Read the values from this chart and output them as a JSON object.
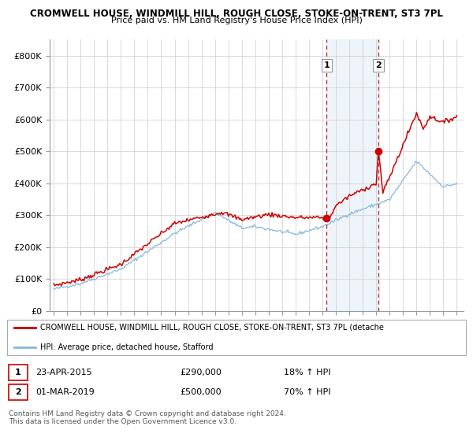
{
  "title1": "CROMWELL HOUSE, WINDMILL HILL, ROUGH CLOSE, STOKE-ON-TRENT, ST3 7PL",
  "title2": "Price paid vs. HM Land Registry's House Price Index (HPI)",
  "ylim": [
    0,
    850000
  ],
  "xlim_start": 1994.7,
  "xlim_end": 2025.5,
  "yticks": [
    0,
    100000,
    200000,
    300000,
    400000,
    500000,
    600000,
    700000,
    800000
  ],
  "ytick_labels": [
    "£0",
    "£100K",
    "£200K",
    "£300K",
    "£400K",
    "£500K",
    "£600K",
    "£700K",
    "£800K"
  ],
  "xticks": [
    1995,
    1996,
    1997,
    1998,
    1999,
    2000,
    2001,
    2002,
    2003,
    2004,
    2005,
    2006,
    2007,
    2008,
    2009,
    2010,
    2011,
    2012,
    2013,
    2014,
    2015,
    2016,
    2017,
    2018,
    2019,
    2020,
    2021,
    2022,
    2023,
    2024,
    2025
  ],
  "hpi_color": "#85b8db",
  "price_color": "#cc0000",
  "marker_color": "#cc0000",
  "vline_color": "#cc0000",
  "shade_color": "#cde4f5",
  "point1_x": 2015.31,
  "point1_y": 290000,
  "point2_x": 2019.17,
  "point2_y": 500000,
  "legend_label1": "CROMWELL HOUSE, WINDMILL HILL, ROUGH CLOSE, STOKE-ON-TRENT, ST3 7PL (detache",
  "legend_label2": "HPI: Average price, detached house, Stafford",
  "table_row1_num": "1",
  "table_row1_date": "23-APR-2015",
  "table_row1_price": "£290,000",
  "table_row1_hpi": "18% ↑ HPI",
  "table_row2_num": "2",
  "table_row2_date": "01-MAR-2019",
  "table_row2_price": "£500,000",
  "table_row2_hpi": "70% ↑ HPI",
  "footer1": "Contains HM Land Registry data © Crown copyright and database right 2024.",
  "footer2": "This data is licensed under the Open Government Licence v3.0.",
  "background_color": "#ffffff",
  "grid_color": "#cccccc"
}
